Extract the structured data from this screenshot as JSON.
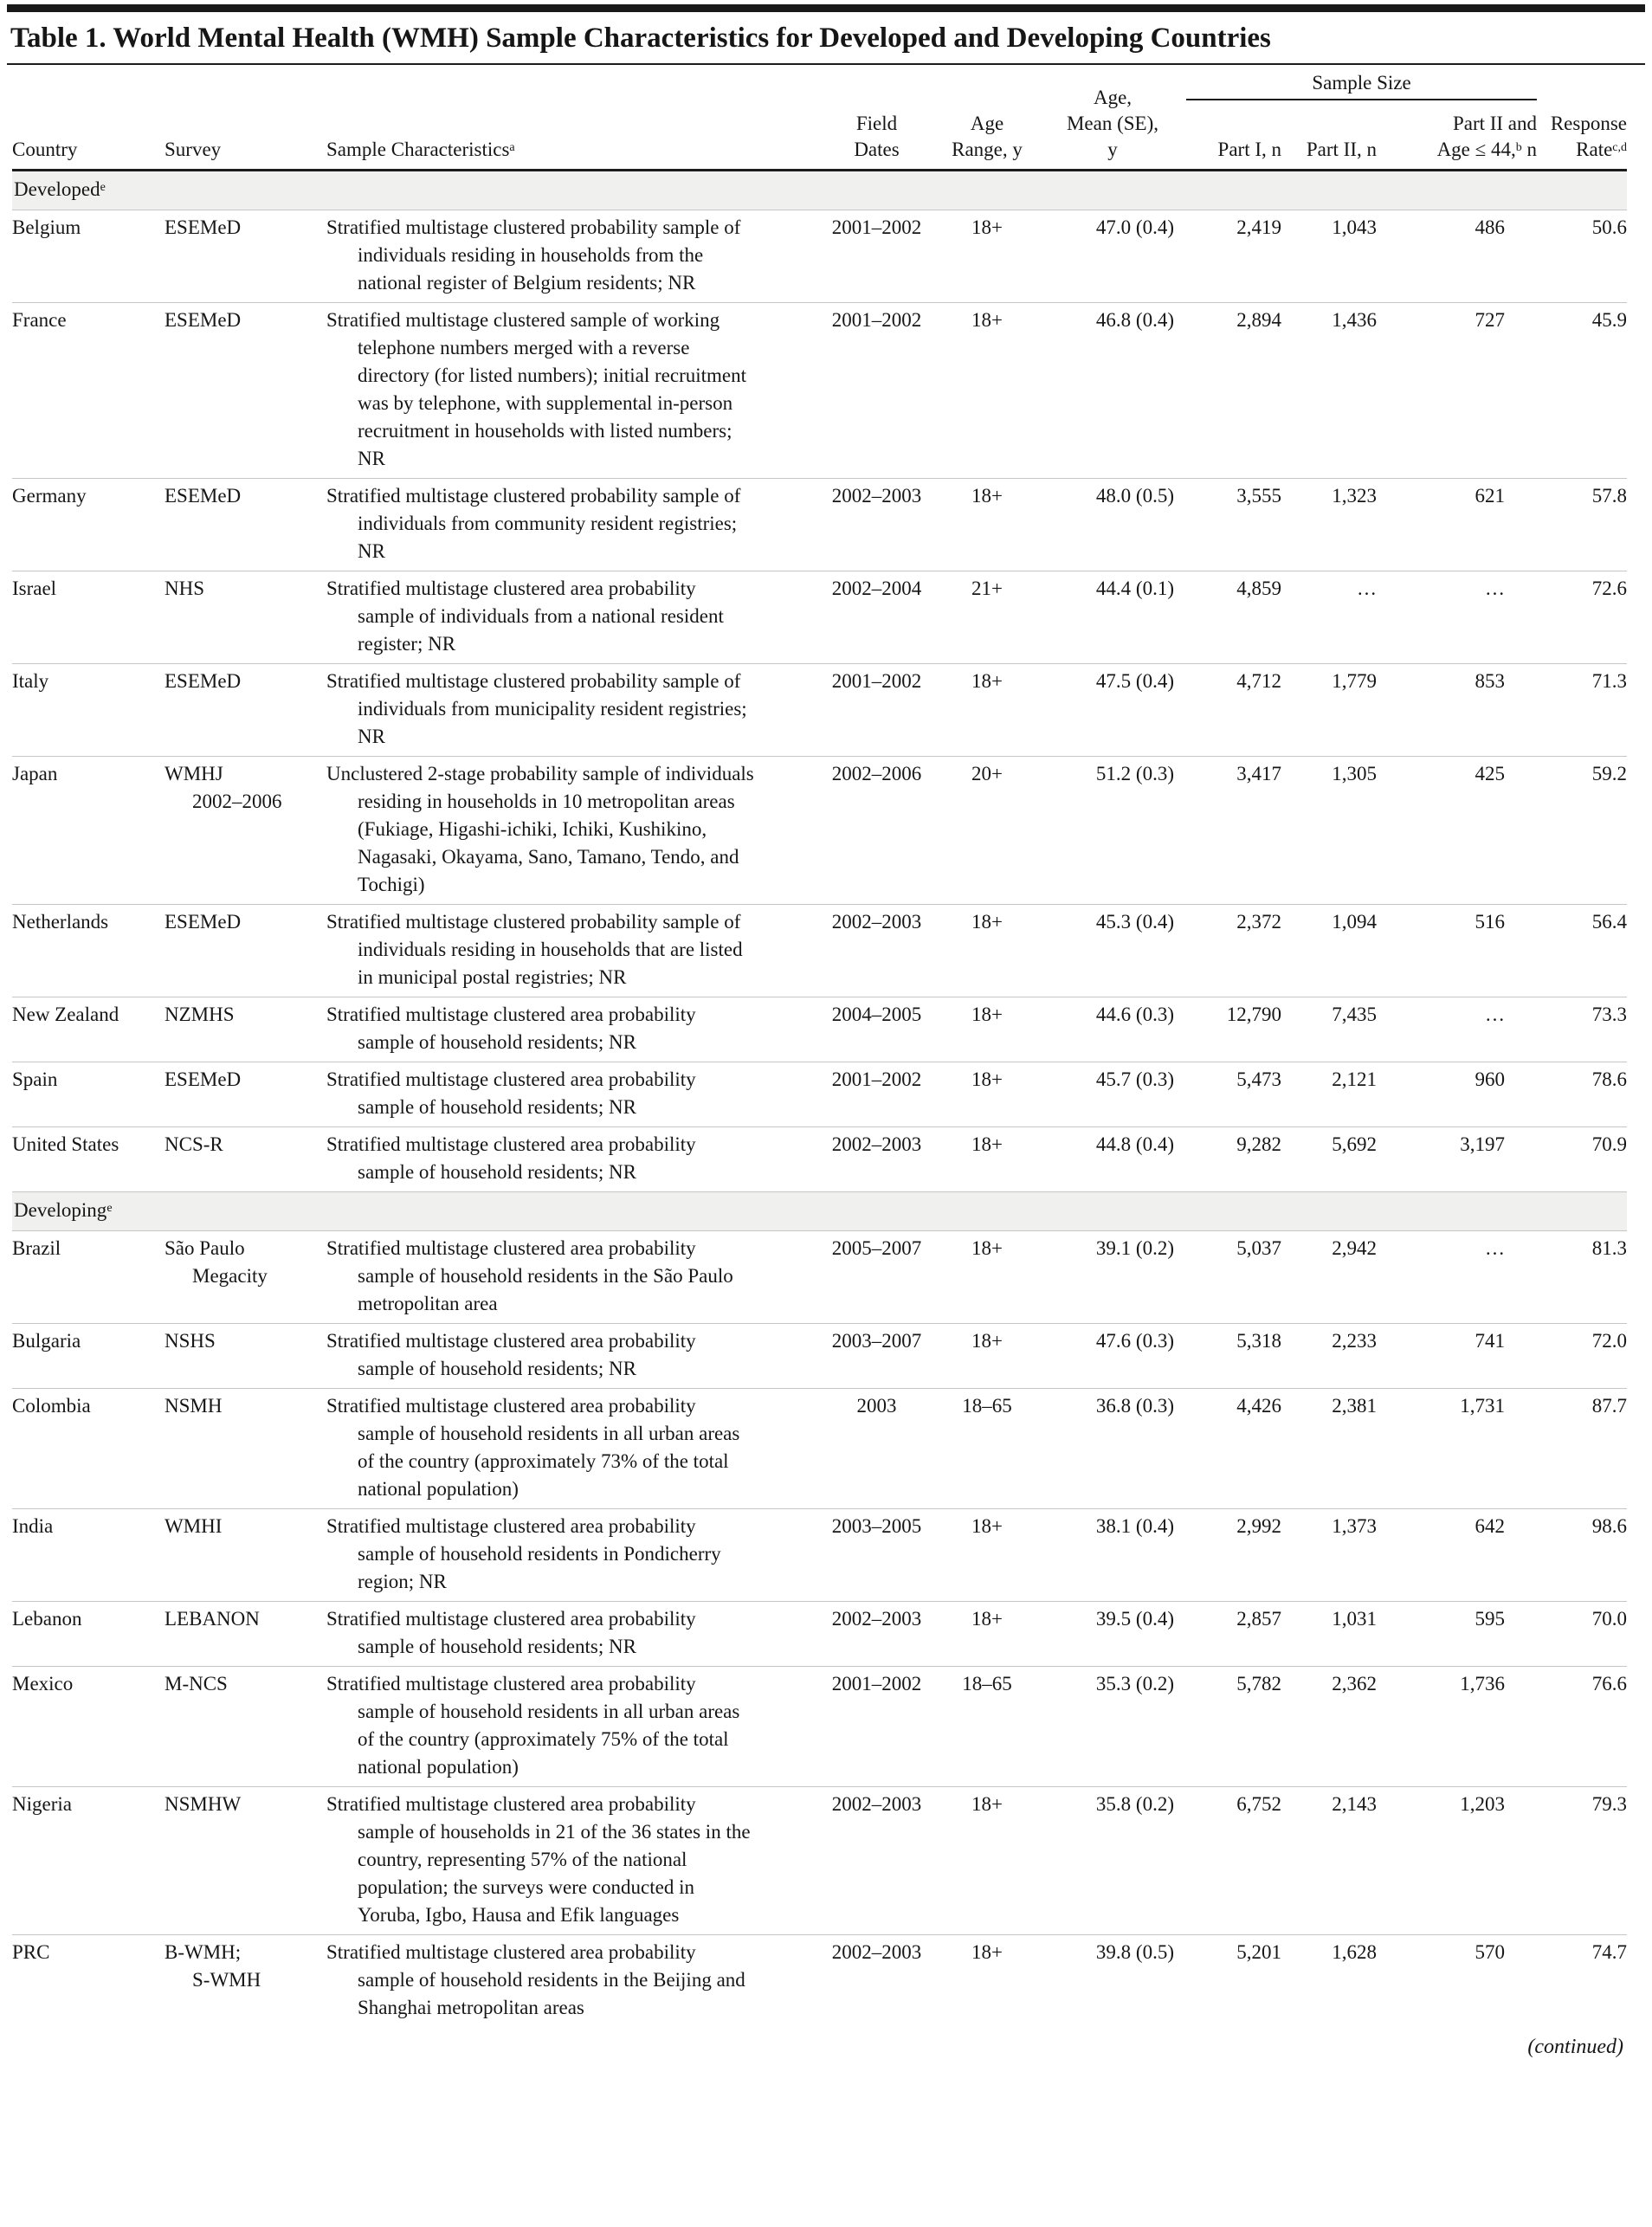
{
  "title": "Table 1. World Mental Health (WMH) Sample Characteristics for Developed and Developing Countries",
  "header": {
    "country": "Country",
    "survey": "Survey",
    "characteristics": {
      "text": "Sample Characteristics",
      "sup": "a"
    },
    "field_dates": {
      "line1": "Field",
      "line2": "Dates"
    },
    "age_range": {
      "line1": "Age",
      "line2": "Range, y"
    },
    "age_mean": {
      "line1": "Age,",
      "line2": "Mean (SE),",
      "line3": "y"
    },
    "sample_size_group": "Sample Size",
    "part1": "Part I, n",
    "part2": "Part II, n",
    "part2_age": {
      "line1": "Part II and",
      "line2_pre": "Age ≤ 44,",
      "line2_sup": "b",
      "line2_post": " n"
    },
    "response": {
      "line1": "Response",
      "line2_pre": "Rate",
      "line2_sup": "c,d"
    }
  },
  "sections": [
    {
      "label": "Developed",
      "sup": "e",
      "rows": [
        {
          "country": "Belgium",
          "survey1": "ESEMeD",
          "survey2": "",
          "characteristics": "Stratified multistage clustered probability sample of individuals residing in households from the national register of Belgium residents; NR",
          "field_dates": "2001–2002",
          "age_range": "18+",
          "age_mean": "47.0 (0.4)",
          "part1": "2,419",
          "part2": "1,043",
          "part2_age": "486",
          "response": "50.6"
        },
        {
          "country": "France",
          "survey1": "ESEMeD",
          "survey2": "",
          "characteristics": "Stratified multistage clustered sample of working telephone numbers merged with a reverse directory (for listed numbers); initial recruitment was by telephone, with supplemental in-person recruitment in households with listed numbers; NR",
          "field_dates": "2001–2002",
          "age_range": "18+",
          "age_mean": "46.8 (0.4)",
          "part1": "2,894",
          "part2": "1,436",
          "part2_age": "727",
          "response": "45.9"
        },
        {
          "country": "Germany",
          "survey1": "ESEMeD",
          "survey2": "",
          "characteristics": "Stratified multistage clustered probability sample of individuals from community resident registries; NR",
          "field_dates": "2002–2003",
          "age_range": "18+",
          "age_mean": "48.0 (0.5)",
          "part1": "3,555",
          "part2": "1,323",
          "part2_age": "621",
          "response": "57.8"
        },
        {
          "country": "Israel",
          "survey1": "NHS",
          "survey2": "",
          "characteristics": "Stratified multistage clustered area probability sample of individuals from a national resident register; NR",
          "field_dates": "2002–2004",
          "age_range": "21+",
          "age_mean": "44.4 (0.1)",
          "part1": "4,859",
          "part2": "…",
          "part2_age": "…",
          "response": "72.6"
        },
        {
          "country": "Italy",
          "survey1": "ESEMeD",
          "survey2": "",
          "characteristics": "Stratified multistage clustered probability sample of individuals from municipality resident registries; NR",
          "field_dates": "2001–2002",
          "age_range": "18+",
          "age_mean": "47.5 (0.4)",
          "part1": "4,712",
          "part2": "1,779",
          "part2_age": "853",
          "response": "71.3"
        },
        {
          "country": "Japan",
          "survey1": "WMHJ",
          "survey2": "2002–2006",
          "characteristics": "Unclustered 2-stage probability sample of individuals residing in households in 10 metropolitan areas (Fukiage, Higashi-ichiki, Ichiki, Kushikino, Nagasaki, Okayama, Sano, Tamano, Tendo, and Tochigi)",
          "field_dates": "2002–2006",
          "age_range": "20+",
          "age_mean": "51.2 (0.3)",
          "part1": "3,417",
          "part2": "1,305",
          "part2_age": "425",
          "response": "59.2"
        },
        {
          "country": "Netherlands",
          "survey1": "ESEMeD",
          "survey2": "",
          "characteristics": "Stratified multistage clustered probability sample of individuals residing in households that are listed in municipal postal registries; NR",
          "field_dates": "2002–2003",
          "age_range": "18+",
          "age_mean": "45.3 (0.4)",
          "part1": "2,372",
          "part2": "1,094",
          "part2_age": "516",
          "response": "56.4"
        },
        {
          "country": "New Zealand",
          "survey1": "NZMHS",
          "survey2": "",
          "characteristics": "Stratified multistage clustered area probability sample of household residents; NR",
          "field_dates": "2004–2005",
          "age_range": "18+",
          "age_mean": "44.6 (0.3)",
          "part1": "12,790",
          "part2": "7,435",
          "part2_age": "…",
          "response": "73.3"
        },
        {
          "country": "Spain",
          "survey1": "ESEMeD",
          "survey2": "",
          "characteristics": "Stratified multistage clustered area probability sample of household residents; NR",
          "field_dates": "2001–2002",
          "age_range": "18+",
          "age_mean": "45.7 (0.3)",
          "part1": "5,473",
          "part2": "2,121",
          "part2_age": "960",
          "response": "78.6"
        },
        {
          "country": "United States",
          "survey1": "NCS-R",
          "survey2": "",
          "characteristics": "Stratified multistage clustered area probability sample of household residents; NR",
          "field_dates": "2002–2003",
          "age_range": "18+",
          "age_mean": "44.8 (0.4)",
          "part1": "9,282",
          "part2": "5,692",
          "part2_age": "3,197",
          "response": "70.9"
        }
      ]
    },
    {
      "label": "Developing",
      "sup": "e",
      "rows": [
        {
          "country": "Brazil",
          "survey1": "São Paulo",
          "survey2": "Megacity",
          "characteristics": "Stratified multistage clustered area probability sample of household residents in the São Paulo metropolitan area",
          "field_dates": "2005–2007",
          "age_range": "18+",
          "age_mean": "39.1 (0.2)",
          "part1": "5,037",
          "part2": "2,942",
          "part2_age": "…",
          "response": "81.3"
        },
        {
          "country": "Bulgaria",
          "survey1": "NSHS",
          "survey2": "",
          "characteristics": "Stratified multistage clustered area probability sample of household residents; NR",
          "field_dates": "2003–2007",
          "age_range": "18+",
          "age_mean": "47.6 (0.3)",
          "part1": "5,318",
          "part2": "2,233",
          "part2_age": "741",
          "response": "72.0"
        },
        {
          "country": "Colombia",
          "survey1": "NSMH",
          "survey2": "",
          "characteristics": "Stratified multistage clustered area probability sample of household residents in all urban areas of the country (approximately 73% of the total national population)",
          "field_dates": "2003",
          "age_range": "18–65",
          "age_mean": "36.8 (0.3)",
          "part1": "4,426",
          "part2": "2,381",
          "part2_age": "1,731",
          "response": "87.7"
        },
        {
          "country": "India",
          "survey1": "WMHI",
          "survey2": "",
          "characteristics": "Stratified multistage clustered area probability sample of household residents in Pondicherry region; NR",
          "field_dates": "2003–2005",
          "age_range": "18+",
          "age_mean": "38.1 (0.4)",
          "part1": "2,992",
          "part2": "1,373",
          "part2_age": "642",
          "response": "98.6"
        },
        {
          "country": "Lebanon",
          "survey1": "LEBANON",
          "survey2": "",
          "characteristics": "Stratified multistage clustered area probability sample of household residents; NR",
          "field_dates": "2002–2003",
          "age_range": "18+",
          "age_mean": "39.5 (0.4)",
          "part1": "2,857",
          "part2": "1,031",
          "part2_age": "595",
          "response": "70.0"
        },
        {
          "country": "Mexico",
          "survey1": "M-NCS",
          "survey2": "",
          "characteristics": "Stratified multistage clustered area probability sample of household residents in all urban areas of the country (approximately 75% of the total national population)",
          "field_dates": "2001–2002",
          "age_range": "18–65",
          "age_mean": "35.3 (0.2)",
          "part1": "5,782",
          "part2": "2,362",
          "part2_age": "1,736",
          "response": "76.6"
        },
        {
          "country": "Nigeria",
          "survey1": "NSMHW",
          "survey2": "",
          "characteristics": "Stratified multistage clustered area probability sample of households in 21 of the 36 states in the country, representing 57% of the national population; the surveys were conducted in Yoruba, Igbo, Hausa and Efik languages",
          "field_dates": "2002–2003",
          "age_range": "18+",
          "age_mean": "35.8 (0.2)",
          "part1": "6,752",
          "part2": "2,143",
          "part2_age": "1,203",
          "response": "79.3"
        },
        {
          "country": "PRC",
          "survey1": "B-WMH;",
          "survey2": "S-WMH",
          "characteristics": "Stratified multistage clustered area probability sample of household residents in the Beijing and Shanghai metropolitan areas",
          "field_dates": "2002–2003",
          "age_range": "18+",
          "age_mean": "39.8 (0.5)",
          "part1": "5,201",
          "part2": "1,628",
          "part2_age": "570",
          "response": "74.7"
        }
      ]
    }
  ],
  "footer": {
    "continued": "(continued)"
  }
}
